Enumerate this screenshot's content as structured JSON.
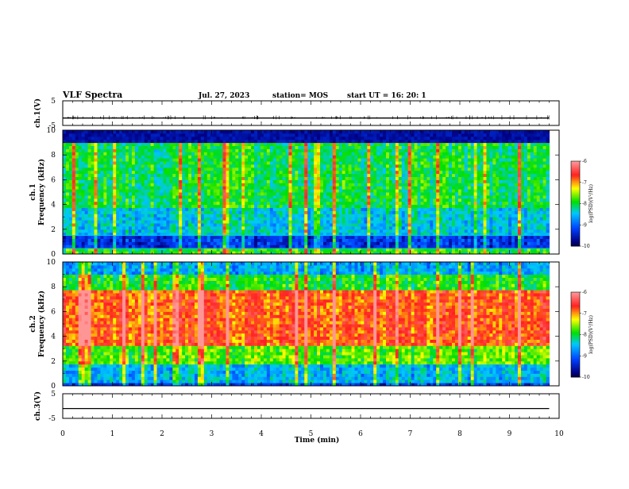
{
  "header": {
    "title": "VLF Spectra",
    "date": "Jul. 27, 2023",
    "station": "station= MOS",
    "start_ut": "start  UT  =   16: 20: 1"
  },
  "chart_data": [
    {
      "type": "line",
      "panel": "ch1-voltage",
      "ylabel": "ch.1(V)",
      "ylim": [
        -5,
        5
      ],
      "y_tick_labels": [
        "5",
        "-5"
      ],
      "x": [
        0,
        9.8
      ],
      "values": [
        -2,
        -2
      ]
    },
    {
      "type": "heatmap",
      "panel": "ch1-spectrogram",
      "ylabel": "ch.1\nFrequency (kHz)",
      "ylim": [
        0,
        10
      ],
      "y_tick_labels": [
        "0",
        "2",
        "4",
        "6",
        "8",
        "10"
      ],
      "xlim": [
        0,
        9.8
      ],
      "description_bands": [
        {
          "from": 0,
          "to": 0.5,
          "level": "broadband-green-yellow"
        },
        {
          "from": 0.5,
          "to": 1.6,
          "level": "low-blue"
        },
        {
          "from": 1.6,
          "to": 3.8,
          "level": "medium-cyan-blue"
        },
        {
          "from": 3.8,
          "to": 9.0,
          "level": "green-with-vertical-spikes"
        },
        {
          "from": 9.0,
          "to": 10,
          "level": "low-dark-blue"
        }
      ],
      "colorbar": {
        "label": "log(PSD)(V²/Hz)",
        "ticks": [
          "-6",
          "-7",
          "-8",
          "-9",
          "-10"
        ],
        "range": [
          -10,
          -6
        ]
      }
    },
    {
      "type": "heatmap",
      "panel": "ch2-spectrogram",
      "ylabel": "ch.2\nFrequency (kHz)",
      "ylim": [
        0,
        10
      ],
      "y_tick_labels": [
        "0",
        "2",
        "4",
        "6",
        "8",
        "10"
      ],
      "xlim": [
        0,
        9.8
      ],
      "description_bands": [
        {
          "from": 0,
          "to": 0.3,
          "level": "low-blue"
        },
        {
          "from": 0.3,
          "to": 1.8,
          "level": "cyan-blue"
        },
        {
          "from": 1.8,
          "to": 3.2,
          "level": "green-yellow"
        },
        {
          "from": 3.2,
          "to": 7.8,
          "level": "high-red"
        },
        {
          "from": 7.8,
          "to": 9.0,
          "level": "green"
        },
        {
          "from": 9.0,
          "to": 10,
          "level": "cyan-blue"
        }
      ],
      "colorbar": {
        "label": "log(PSD)(V²/Hz)",
        "ticks": [
          "-6",
          "-7",
          "-8",
          "-9",
          "-10"
        ],
        "range": [
          -10,
          -6
        ]
      }
    },
    {
      "type": "line",
      "panel": "ch3-voltage",
      "ylabel": "ch.3(V)",
      "ylim": [
        -5,
        5
      ],
      "y_tick_labels": [
        "5",
        "-5"
      ],
      "x": [
        0,
        9.8
      ],
      "values": [
        -1,
        -1
      ]
    }
  ],
  "x_axis": {
    "label": "Time (min)",
    "range": [
      0,
      10
    ],
    "tick_labels": [
      "0",
      "1",
      "2",
      "3",
      "4",
      "5",
      "6",
      "7",
      "8",
      "9",
      "10"
    ]
  },
  "colors": {
    "black": "#000000",
    "dark_blue": "#000080",
    "blue": "#0040ff",
    "cyan": "#00c8ff",
    "green": "#00e000",
    "yellow": "#ffff00",
    "red": "#ff2020",
    "pink": "#ff9090"
  }
}
